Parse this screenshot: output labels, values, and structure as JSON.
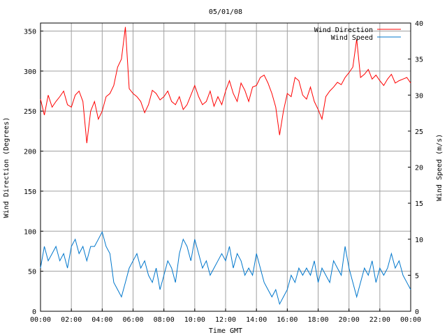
{
  "chart_data": {
    "type": "line",
    "title": "05/01/08",
    "xlabel": "Time GMT",
    "ylabel_left": "Wind Direction (Degrees)",
    "ylabel_right": "Wind Speed (m/s)",
    "x_ticks": [
      "00:00",
      "02:00",
      "04:00",
      "06:00",
      "08:00",
      "10:00",
      "12:00",
      "14:00",
      "16:00",
      "18:00",
      "20:00",
      "22:00",
      "00:00"
    ],
    "xlim": [
      0,
      24
    ],
    "y_left_ticks": [
      0,
      50,
      100,
      150,
      200,
      250,
      300,
      350
    ],
    "ylim_left": [
      0,
      360
    ],
    "y_right_ticks": [
      0,
      5,
      10,
      15,
      20,
      25,
      30,
      35,
      40
    ],
    "ylim_right": [
      0,
      40
    ],
    "grid": true,
    "legend_position": "top-right",
    "series": [
      {
        "name": "Wind Direction",
        "axis": "left",
        "color": "#ff0000",
        "x": [
          0,
          0.25,
          0.5,
          0.75,
          1,
          1.25,
          1.5,
          1.75,
          2,
          2.25,
          2.5,
          2.75,
          3,
          3.25,
          3.5,
          3.75,
          4,
          4.25,
          4.5,
          4.75,
          5,
          5.25,
          5.5,
          5.75,
          6,
          6.25,
          6.5,
          6.75,
          7,
          7.25,
          7.5,
          7.75,
          8,
          8.25,
          8.5,
          8.75,
          9,
          9.25,
          9.5,
          9.75,
          10,
          10.25,
          10.5,
          10.75,
          11,
          11.25,
          11.5,
          11.75,
          12,
          12.25,
          12.5,
          12.75,
          13,
          13.25,
          13.5,
          13.75,
          14,
          14.25,
          14.5,
          14.75,
          15,
          15.25,
          15.5,
          15.75,
          16,
          16.25,
          16.5,
          16.75,
          17,
          17.25,
          17.5,
          17.75,
          18,
          18.25,
          18.5,
          18.75,
          19,
          19.25,
          19.5,
          19.75,
          20,
          20.25,
          20.5,
          20.75,
          21,
          21.25,
          21.5,
          21.75,
          22,
          22.25,
          22.5,
          22.75,
          23,
          23.25,
          23.5,
          23.75,
          24
        ],
        "values": [
          265,
          245,
          270,
          255,
          262,
          268,
          275,
          258,
          255,
          270,
          275,
          262,
          210,
          250,
          262,
          240,
          250,
          268,
          272,
          282,
          305,
          315,
          355,
          278,
          272,
          268,
          262,
          248,
          258,
          276,
          272,
          264,
          268,
          275,
          262,
          258,
          268,
          252,
          258,
          270,
          282,
          268,
          258,
          262,
          275,
          256,
          268,
          258,
          275,
          288,
          272,
          262,
          285,
          276,
          262,
          280,
          282,
          292,
          295,
          285,
          272,
          255,
          220,
          250,
          272,
          268,
          292,
          288,
          270,
          265,
          280,
          262,
          252,
          240,
          268,
          275,
          280,
          286,
          283,
          292,
          298,
          305,
          340,
          292,
          296,
          302,
          290,
          295,
          288,
          282,
          290,
          296,
          285,
          288,
          290,
          292,
          285
        ]
      },
      {
        "name": "Wind Speed",
        "axis": "right",
        "color": "#0077cc",
        "x": [
          0,
          0.25,
          0.5,
          0.75,
          1,
          1.25,
          1.5,
          1.75,
          2,
          2.25,
          2.5,
          2.75,
          3,
          3.25,
          3.5,
          3.75,
          4,
          4.25,
          4.5,
          4.75,
          5,
          5.25,
          5.5,
          5.75,
          6,
          6.25,
          6.5,
          6.75,
          7,
          7.25,
          7.5,
          7.75,
          8,
          8.25,
          8.5,
          8.75,
          9,
          9.25,
          9.5,
          9.75,
          10,
          10.25,
          10.5,
          10.75,
          11,
          11.25,
          11.5,
          11.75,
          12,
          12.25,
          12.5,
          12.75,
          13,
          13.25,
          13.5,
          13.75,
          14,
          14.25,
          14.5,
          14.75,
          15,
          15.25,
          15.5,
          15.75,
          16,
          16.25,
          16.5,
          16.75,
          17,
          17.25,
          17.5,
          17.75,
          18,
          18.25,
          18.5,
          18.75,
          19,
          19.25,
          19.5,
          19.75,
          20,
          20.25,
          20.5,
          20.75,
          21,
          21.25,
          21.5,
          21.75,
          22,
          22.25,
          22.5,
          22.75,
          23,
          23.25,
          23.5,
          23.75,
          24
        ],
        "values": [
          6,
          9,
          7,
          8,
          9,
          7,
          8,
          6,
          9,
          10,
          8,
          9,
          7,
          9,
          9,
          10,
          11,
          9,
          8,
          4,
          3,
          2,
          4,
          6,
          7,
          8,
          6,
          7,
          5,
          4,
          6,
          3,
          5,
          7,
          6,
          4,
          8,
          10,
          9,
          7,
          10,
          8,
          6,
          7,
          5,
          6,
          7,
          8,
          7,
          9,
          6,
          8,
          7,
          5,
          6,
          5,
          8,
          6,
          4,
          3,
          2,
          3,
          1,
          2,
          3,
          5,
          4,
          6,
          5,
          6,
          5,
          7,
          4,
          6,
          5,
          4,
          7,
          6,
          5,
          9,
          6,
          4,
          2,
          4,
          6,
          5,
          7,
          4,
          6,
          5,
          6,
          8,
          6,
          7,
          5,
          4,
          3
        ]
      }
    ]
  }
}
